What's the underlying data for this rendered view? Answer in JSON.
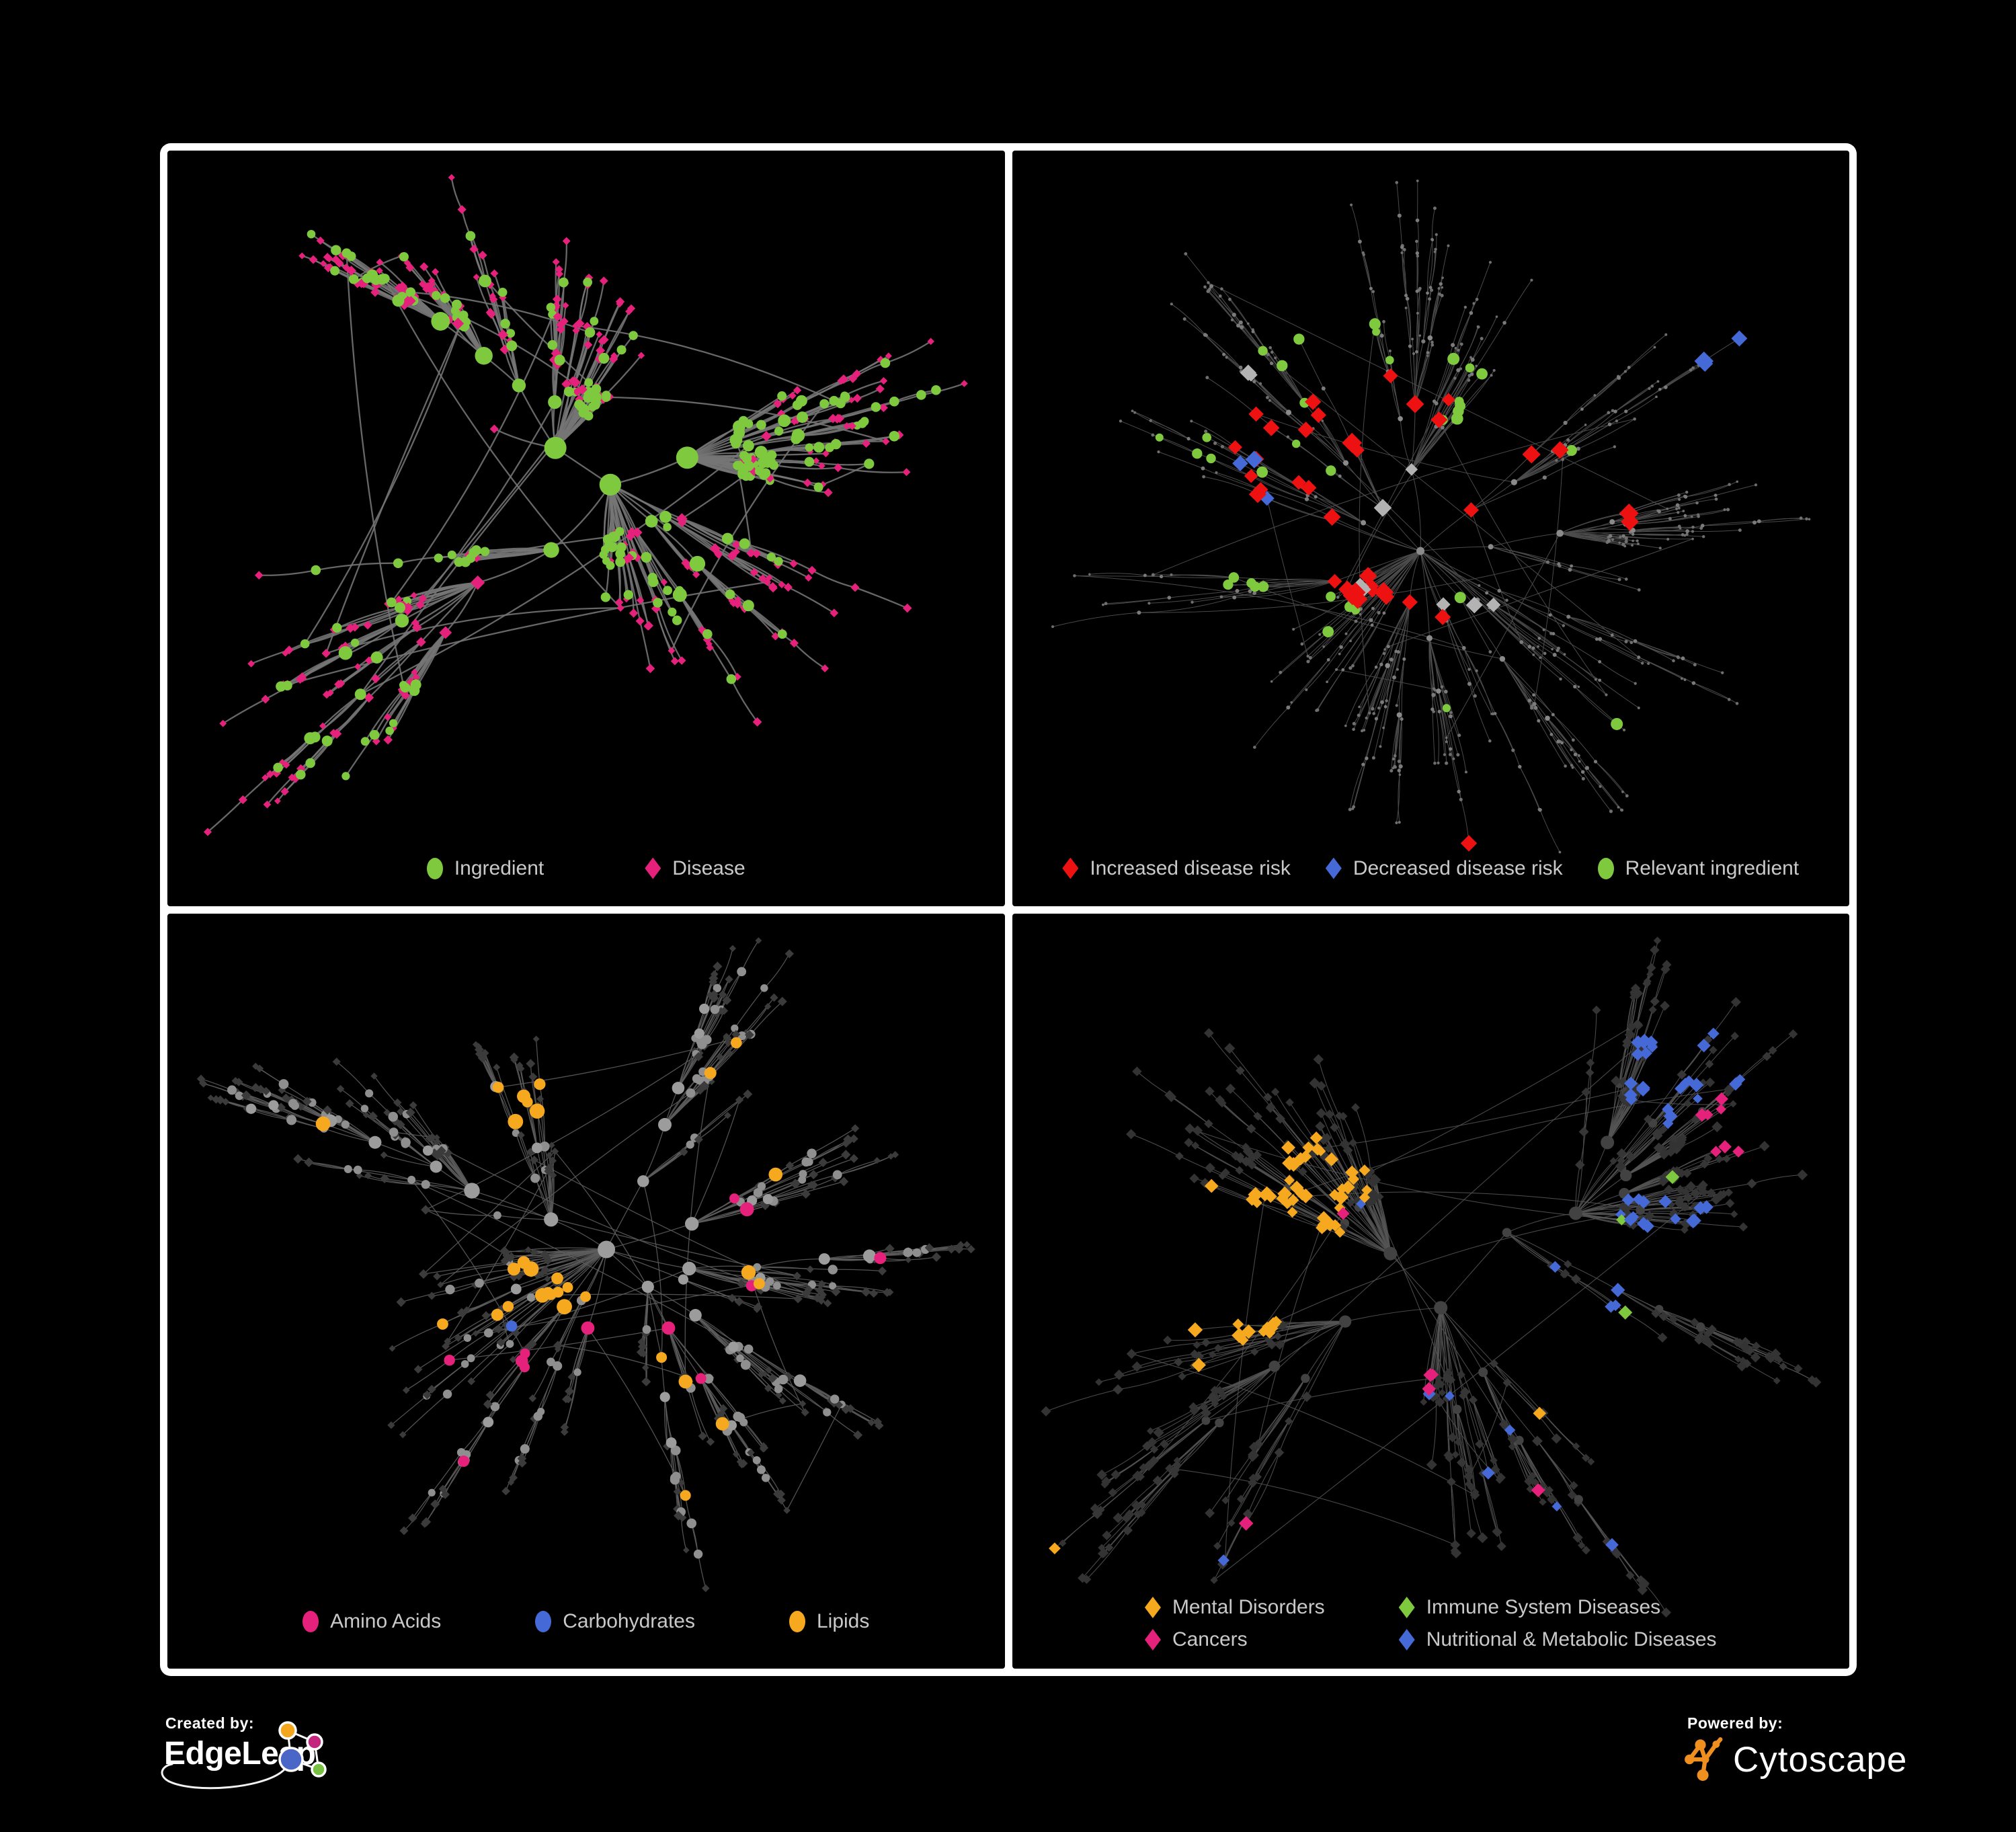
{
  "figure": {
    "background": "#000000",
    "frame_color": "#ffffff",
    "panel_background": "#000000",
    "legend_text_color": "#c9c9c9"
  },
  "panels": [
    {
      "id": "ingredient-disease-network",
      "legend": {
        "gap": 150,
        "columns": 1,
        "items": [
          {
            "label": "Ingredient",
            "shape": "circle",
            "color": "#7fc93e"
          },
          {
            "label": "Disease",
            "shape": "diamond",
            "color": "#e6217c"
          }
        ]
      },
      "network": {
        "seed": 11,
        "nodes": 560,
        "alpha": 1.18,
        "extraEdges": 90,
        "step0": 150,
        "stepDecay": 0.87,
        "squash": 0.92,
        "pad": [
          60,
          40,
          60,
          110
        ],
        "edge": {
          "color": "#757575",
          "width": 2.3,
          "opacity": 0.88,
          "curve": 0.09
        },
        "mode": "classes",
        "twoClass": {
          "colorA": "#7fc93e",
          "colorB": "#e6217c",
          "hubAP": 0.6,
          "midAP": 0.42,
          "leafAP": 0.15,
          "biasHubP": 0.3,
          "biasHi": 0.78,
          "biasLo": 0.1
        }
      }
    },
    {
      "id": "disease-risk-network",
      "legend": {
        "gap": 52,
        "columns": 1,
        "items": [
          {
            "label": "Increased disease risk",
            "shape": "diamond",
            "color": "#ee1111"
          },
          {
            "label": "Decreased disease risk",
            "shape": "diamond",
            "color": "#4569d6"
          },
          {
            "label": "Relevant ingredient",
            "shape": "circle",
            "color": "#7fc93e"
          }
        ]
      },
      "network": {
        "seed": 7,
        "nodes": 620,
        "alpha": 1.12,
        "extraEdges": 60,
        "step0": 150,
        "stepDecay": 0.88,
        "squash": 0.9,
        "pad": [
          60,
          45,
          60,
          80
        ],
        "edge": {
          "color": "#4d4d4d",
          "width": 1.0,
          "opacity": 0.95,
          "curve": 0.08
        },
        "mode": "highlight",
        "base": {
          "hubDeg": 6,
          "hubShape": "c",
          "hubColor": "#8a8a8a",
          "hubR0": 2.5,
          "hubRk": 0.55,
          "hubRmax": 6,
          "midShape": "c",
          "midColor": "#7b7b7b",
          "midR": 2.7,
          "leafShape": "c",
          "leafColor": "#6f6f6f",
          "leafR": 2.2
        },
        "rules": [
          {
            "name": "increased-risk",
            "color": "#ee1111",
            "shape": "d",
            "size": 12.5,
            "target": "any",
            "scatter": 0,
            "anchors": [
              [
                0.42,
                0.5,
                0.14,
                0.32
              ],
              [
                0.33,
                0.4,
                0.09,
                0.3
              ],
              [
                0.52,
                0.55,
                0.1,
                0.3
              ],
              [
                0.58,
                0.95,
                0.05,
                0.75
              ],
              [
                0.63,
                0.42,
                0.05,
                0.5
              ],
              [
                0.47,
                0.32,
                0.06,
                0.3
              ],
              [
                0.74,
                0.48,
                0.04,
                0.4
              ]
            ]
          },
          {
            "name": "decreased-risk",
            "color": "#4569d6",
            "shape": "d",
            "size": 12,
            "target": "any",
            "scatter": 0,
            "anchors": [
              [
                0.25,
                0.37,
                0.055,
                0.65
              ],
              [
                0.9,
                0.27,
                0.04,
                0.95
              ],
              [
                0.3,
                0.47,
                0.04,
                0.4
              ]
            ]
          },
          {
            "name": "unchanged-risk",
            "color": "#b3b3b3",
            "shape": "d",
            "size": 11.5,
            "target": "any",
            "scatter": 0,
            "anchors": [
              [
                0.38,
                0.48,
                0.14,
                0.1
              ],
              [
                0.25,
                0.3,
                0.05,
                0.3
              ],
              [
                0.54,
                0.6,
                0.06,
                0.25
              ],
              [
                0.14,
                0.49,
                0.04,
                0.3
              ]
            ]
          },
          {
            "name": "relevant-ingredient",
            "color": "#7fc93e",
            "shape": "c",
            "size": 7.5,
            "target": "any",
            "scatter": 0.004,
            "anchors": [
              [
                0.4,
                0.45,
                0.24,
                0.17
              ],
              [
                0.96,
                0.56,
                0.04,
                0.6
              ],
              [
                0.14,
                0.37,
                0.06,
                0.35
              ],
              [
                0.36,
                0.84,
                0.035,
                0.5
              ],
              [
                0.6,
                0.3,
                0.08,
                0.2
              ]
            ]
          }
        ]
      }
    },
    {
      "id": "nutrient-class-network",
      "legend": {
        "gap": 140,
        "columns": 1,
        "items": [
          {
            "label": "Amino Acids",
            "shape": "circle",
            "color": "#e6217c"
          },
          {
            "label": "Carbohydrates",
            "shape": "circle",
            "color": "#4569d6"
          },
          {
            "label": "Lipids",
            "shape": "circle",
            "color": "#f6a91e"
          }
        ]
      },
      "network": {
        "seed": 23,
        "nodes": 620,
        "alpha": 1.16,
        "extraEdges": 70,
        "step0": 150,
        "stepDecay": 0.87,
        "squash": 0.9,
        "pad": [
          50,
          40,
          50,
          120
        ],
        "edge": {
          "color": "#5c5c5c",
          "width": 1.25,
          "opacity": 0.9,
          "curve": 0.08
        },
        "mode": "highlight",
        "base": {
          "hubDeg": 5,
          "hubShape": "c",
          "hubColor": "#9c9c9c",
          "hubR0": 4,
          "hubRk": 1.6,
          "hubRmax": 13,
          "midShape": "c",
          "midColor": "#8f8f8f",
          "midR": 6.5,
          "leafShape": "d",
          "leafColor": "#3b3b3b",
          "leafR": 6
        },
        "rules": [
          {
            "name": "lipids",
            "color": "#f6a91e",
            "shape": "c",
            "size": 9.5,
            "target": "c",
            "scatter": 0.02,
            "anchors": [
              [
                0.48,
                0.2,
                0.09,
                0.7
              ],
              [
                0.42,
                0.3,
                0.1,
                0.3
              ],
              [
                0.43,
                0.55,
                0.07,
                0.5
              ],
              [
                0.6,
                0.65,
                0.05,
                0.85
              ],
              [
                0.52,
                0.13,
                0.05,
                0.45
              ],
              [
                0.3,
                0.4,
                0.2,
                0.05
              ],
              [
                0.75,
                0.5,
                0.12,
                0.15
              ]
            ]
          },
          {
            "name": "carbohydrates",
            "color": "#4569d6",
            "shape": "c",
            "size": 9,
            "target": "c",
            "scatter": 0.008,
            "anchors": [
              [
                0.5,
                0.155,
                0.06,
                0.45
              ],
              [
                0.13,
                0.48,
                0.03,
                0.8
              ],
              [
                0.75,
                0.62,
                0.035,
                0.5
              ],
              [
                0.45,
                0.4,
                0.28,
                0.02
              ]
            ]
          },
          {
            "name": "amino-acids",
            "color": "#e6217c",
            "shape": "c",
            "size": 9,
            "target": "c",
            "scatter": 0.012,
            "anchors": [
              [
                0.45,
                0.75,
                0.22,
                0.14
              ],
              [
                0.22,
                0.6,
                0.13,
                0.1
              ],
              [
                0.78,
                0.35,
                0.16,
                0.08
              ],
              [
                0.96,
                0.6,
                0.04,
                0.6
              ],
              [
                0.25,
                0.12,
                0.05,
                0.4
              ],
              [
                0.07,
                0.2,
                0.04,
                0.4
              ],
              [
                0.99,
                0.3,
                0.04,
                0.5
              ]
            ]
          }
        ]
      }
    },
    {
      "id": "disease-category-network",
      "legend": {
        "columns": 2,
        "col_gap": 110,
        "row_gap": 14,
        "items": [
          {
            "label": "Mental Disorders",
            "shape": "diamond",
            "color": "#f6a91e"
          },
          {
            "label": "Immune System Diseases",
            "shape": "diamond",
            "color": "#7fc93e"
          },
          {
            "label": "Cancers",
            "shape": "diamond",
            "color": "#e6217c"
          },
          {
            "label": "Nutritional & Metabolic Diseases",
            "shape": "diamond",
            "color": "#4569d6"
          }
        ]
      },
      "network": {
        "seed": 5,
        "nodes": 660,
        "alpha": 1.14,
        "extraEdges": 80,
        "step0": 150,
        "stepDecay": 0.88,
        "squash": 0.9,
        "pad": [
          50,
          40,
          50,
          84
        ],
        "edge": {
          "color": "#555555",
          "width": 1.1,
          "opacity": 0.85,
          "curve": 0.08
        },
        "mode": "highlight",
        "base": {
          "hubDeg": 6,
          "hubShape": "c",
          "hubColor": "#424242",
          "hubR0": 3.5,
          "hubRk": 1.2,
          "hubRmax": 10,
          "midShape": "d",
          "midColor": "#363636",
          "midR": 7,
          "leafShape": "d",
          "leafColor": "#333333",
          "leafR": 6.8
        },
        "rules": [
          {
            "name": "mental-disorders",
            "color": "#f6a91e",
            "shape": "d",
            "size": 9.5,
            "target": "d",
            "scatter": 0.005,
            "anchors": [
              [
                0.27,
                0.47,
                0.12,
                0.9
              ],
              [
                0.34,
                0.37,
                0.08,
                0.45
              ],
              [
                0.21,
                0.57,
                0.07,
                0.35
              ],
              [
                0.5,
                0.17,
                0.035,
                0.6
              ],
              [
                0.58,
                0.095,
                0.03,
                0.6
              ],
              [
                0.145,
                0.38,
                0.06,
                0.3
              ],
              [
                0.62,
                0.7,
                0.025,
                0.6
              ]
            ]
          },
          {
            "name": "cancers",
            "color": "#e6217c",
            "shape": "d",
            "size": 9,
            "target": "d",
            "scatter": 0.006,
            "anchors": [
              [
                0.42,
                0.5,
                0.1,
                0.6
              ],
              [
                0.5,
                0.43,
                0.08,
                0.4
              ],
              [
                0.56,
                0.55,
                0.07,
                0.35
              ],
              [
                0.88,
                0.28,
                0.045,
                0.7
              ],
              [
                0.33,
                0.88,
                0.045,
                0.5
              ],
              [
                0.6,
                0.3,
                0.035,
                0.4
              ],
              [
                0.47,
                0.63,
                0.05,
                0.35
              ]
            ]
          },
          {
            "name": "nutritional-metabolic",
            "color": "#4569d6",
            "shape": "d",
            "size": 9,
            "target": "d",
            "scatter": 0.012,
            "anchors": [
              [
                0.71,
                0.57,
                0.065,
                0.8
              ],
              [
                0.8,
                0.45,
                0.08,
                0.35
              ],
              [
                0.83,
                0.2,
                0.08,
                0.5
              ],
              [
                0.52,
                0.065,
                0.035,
                0.7
              ],
              [
                0.4,
                0.82,
                0.1,
                0.12
              ],
              [
                0.15,
                0.12,
                0.05,
                0.4
              ],
              [
                0.95,
                0.42,
                0.035,
                0.5
              ],
              [
                0.74,
                0.9,
                0.1,
                0.08
              ],
              [
                0.6,
                0.6,
                0.15,
                0.06
              ]
            ]
          },
          {
            "name": "immune-system",
            "color": "#7fc93e",
            "shape": "d",
            "size": 9,
            "target": "d",
            "scatter": 0.003,
            "anchors": [
              [
                0.5,
                0.3,
                0.2,
                0.03
              ],
              [
                0.3,
                0.93,
                0.03,
                0.6
              ],
              [
                0.735,
                0.54,
                0.025,
                0.6
              ],
              [
                0.48,
                0.96,
                0.03,
                0.4
              ]
            ]
          }
        ]
      }
    }
  ],
  "footer": {
    "created_by": {
      "label": "Created by:",
      "brand": "EdgeLeap",
      "logo_colors": {
        "orange": "#f2a71f",
        "magenta": "#c4267e",
        "blue": "#4a67c8",
        "green": "#77c043",
        "stroke": "#ffffff"
      }
    },
    "powered_by": {
      "label": "Powered by:",
      "brand": "Cytoscape",
      "logo_color": "#ee8f20"
    }
  }
}
